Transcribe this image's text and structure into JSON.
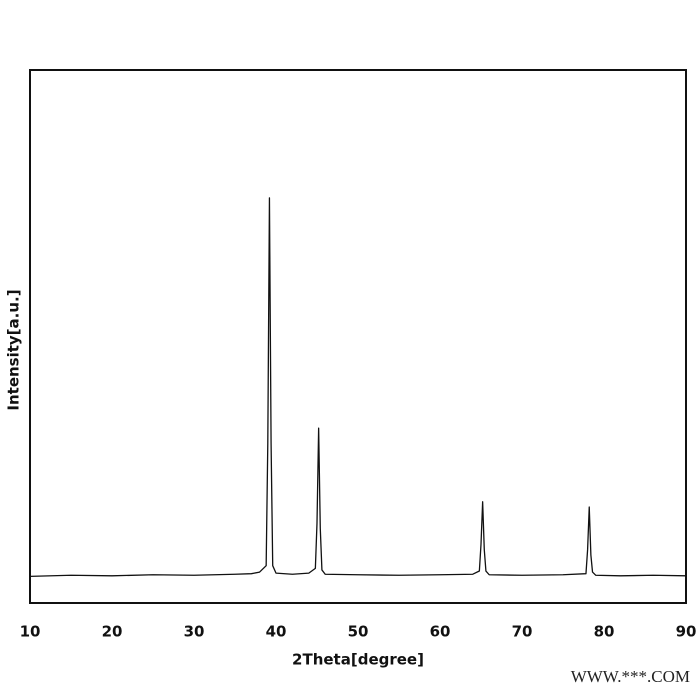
{
  "chart_data": {
    "type": "line",
    "x_label": "2Theta[degree]",
    "y_label": "Intensity[a.u.]",
    "watermark": "WWW.***.COM",
    "x": [
      10,
      15,
      20,
      25,
      30,
      35,
      37,
      38,
      38.8,
      39.0,
      39.2,
      39.4,
      39.6,
      40,
      42,
      44,
      44.8,
      45.0,
      45.2,
      45.4,
      45.6,
      46,
      50,
      55,
      60,
      64,
      64.8,
      65.0,
      65.2,
      65.4,
      65.6,
      66,
      70,
      75,
      77.8,
      78.0,
      78.2,
      78.4,
      78.6,
      79,
      82,
      86,
      90
    ],
    "series": [
      {
        "name": "Intensity",
        "color": "#111111",
        "values": [
          5.0,
          5.2,
          5.1,
          5.3,
          5.2,
          5.4,
          5.5,
          5.8,
          7,
          30,
          76,
          30,
          7,
          5.6,
          5.4,
          5.6,
          6.5,
          15,
          32.8,
          14,
          6.2,
          5.4,
          5.3,
          5.2,
          5.3,
          5.4,
          6,
          11,
          19,
          10,
          6,
          5.3,
          5.2,
          5.3,
          5.5,
          10,
          18,
          9,
          5.8,
          5.2,
          5.1,
          5.2,
          5.1
        ]
      }
    ],
    "xlim": [
      10,
      90
    ],
    "xticks": [
      10,
      20,
      30,
      40,
      50,
      60,
      70,
      80,
      90
    ],
    "ylim": [
      0,
      100
    ],
    "grid": false
  }
}
